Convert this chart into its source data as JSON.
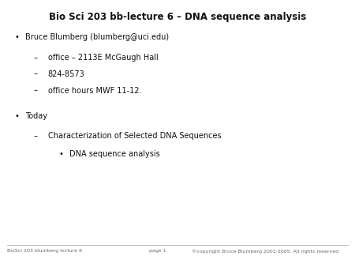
{
  "title": "Bio Sci 203 bb-lecture 6 – DNA sequence analysis",
  "title_fontsize": 8.5,
  "title_fontweight": "bold",
  "bg_color": "#ffffff",
  "text_color": "#111111",
  "font_family": "DejaVu Sans",
  "bullet1": "Bruce Blumberg (blumberg@uci.edu)",
  "sub1a": "office – 2113E McGaugh Hall",
  "sub1b": "824-8573",
  "sub1c": "office hours MWF 11-12.",
  "bullet2": "Today",
  "sub2a": "Characterization of Selected DNA Sequences",
  "sub2a_sub": "DNA sequence analysis",
  "footer_left": "BioSci 203 blumberg lecture 6",
  "footer_center": "page 1",
  "footer_right": "©copyright Bruce Blumberg 2001-2005. All rights reserved",
  "footer_fontsize": 4.5,
  "body_fontsize": 7.0,
  "dash_fontsize": 7.0
}
